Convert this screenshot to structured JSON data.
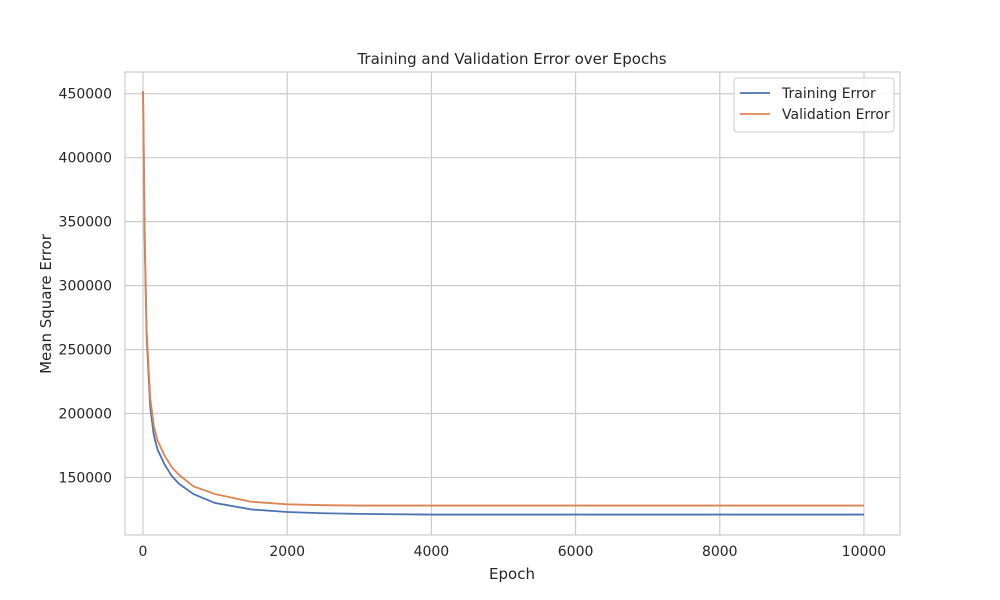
{
  "chart_data": {
    "type": "line",
    "title": "Training and Validation Error over Epochs",
    "xlabel": "Epoch",
    "ylabel": "Mean Square Error",
    "xlim": [
      -250,
      10500
    ],
    "ylim": [
      105000,
      467000
    ],
    "xticks": [
      0,
      2000,
      4000,
      6000,
      8000,
      10000
    ],
    "yticks": [
      150000,
      200000,
      250000,
      300000,
      350000,
      400000,
      450000
    ],
    "grid": true,
    "legend_position": "top-right",
    "series": [
      {
        "name": "Training Error",
        "color": "#4c72b0",
        "x": [
          0,
          25,
          50,
          100,
          150,
          200,
          300,
          400,
          500,
          700,
          1000,
          1500,
          2000,
          2500,
          3000,
          4000,
          6000,
          8000,
          10000
        ],
        "y": [
          452000,
          330000,
          260000,
          205000,
          183000,
          172000,
          160000,
          151000,
          145000,
          137000,
          130000,
          125000,
          123000,
          122000,
          121500,
          121000,
          121000,
          121000,
          121000
        ]
      },
      {
        "name": "Validation Error",
        "color": "#dd8452",
        "x": [
          0,
          25,
          50,
          100,
          150,
          200,
          300,
          400,
          500,
          700,
          1000,
          1500,
          2000,
          2500,
          3000,
          4000,
          6000,
          8000,
          10000
        ],
        "y": [
          452000,
          335000,
          265000,
          212000,
          190000,
          179000,
          167000,
          158000,
          152000,
          143000,
          137000,
          131000,
          129000,
          128300,
          128000,
          128000,
          128000,
          128000,
          128000
        ]
      }
    ]
  }
}
